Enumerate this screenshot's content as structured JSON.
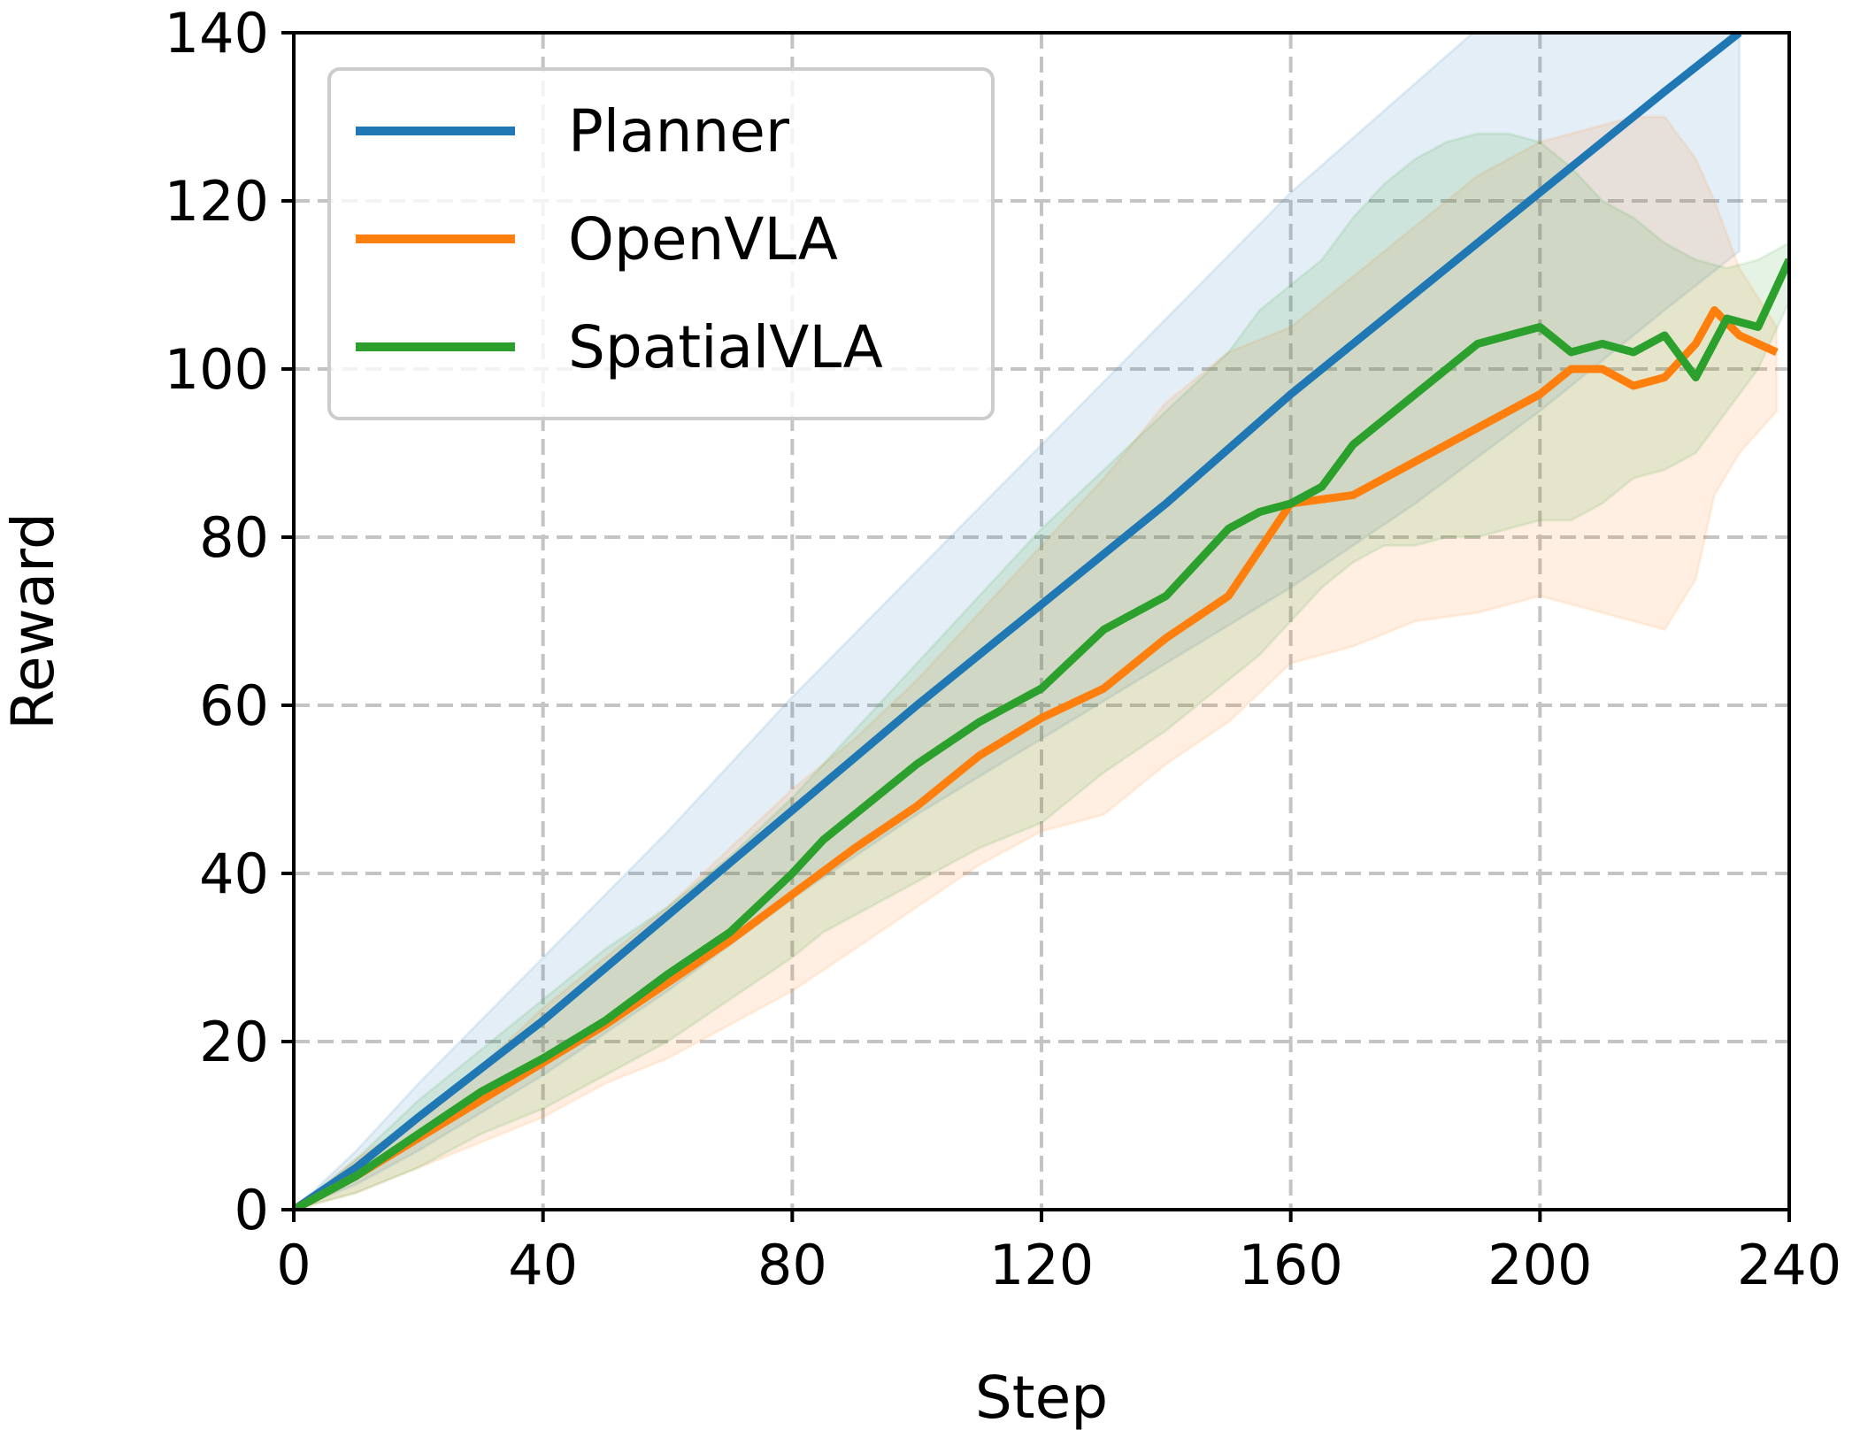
{
  "chart_data": {
    "type": "line",
    "title": "",
    "xlabel": "Step",
    "ylabel": "Reward",
    "xlim": [
      0,
      240
    ],
    "ylim": [
      0,
      140
    ],
    "xticks": [
      0,
      40,
      80,
      120,
      160,
      200,
      240
    ],
    "yticks": [
      0,
      20,
      40,
      60,
      80,
      100,
      120,
      140
    ],
    "grid": true,
    "legend_position": "top-left",
    "series": [
      {
        "name": "Planner",
        "color": "#1f77b4",
        "x": [
          0,
          10,
          20,
          40,
          60,
          80,
          100,
          120,
          140,
          160,
          180,
          200,
          220,
          232
        ],
        "y": [
          0,
          5,
          11,
          22.5,
          35,
          47.5,
          60,
          72,
          84,
          97,
          109,
          121,
          133,
          140
        ],
        "band_low": [
          0,
          3,
          7,
          16,
          26,
          37,
          47,
          56,
          65,
          74,
          84,
          95,
          107,
          114
        ],
        "band_high": [
          0,
          7,
          15,
          30,
          45,
          61,
          76,
          91,
          106,
          121,
          134,
          147,
          150,
          150
        ]
      },
      {
        "name": "OpenVLA",
        "color": "#ff7f0e",
        "x": [
          0,
          10,
          20,
          30,
          40,
          50,
          60,
          70,
          80,
          90,
          100,
          110,
          120,
          130,
          140,
          150,
          160,
          170,
          180,
          190,
          200,
          205,
          210,
          215,
          220,
          225,
          228,
          232,
          238
        ],
        "y": [
          0,
          4,
          8.5,
          13,
          17.5,
          22,
          27,
          32,
          37.5,
          43,
          48,
          54,
          58.5,
          62,
          68,
          73,
          84,
          85,
          89,
          93,
          97,
          100,
          100,
          98,
          99,
          103,
          107,
          104,
          102
        ],
        "band_low": [
          0,
          2,
          5,
          8,
          11,
          15,
          18,
          22,
          26,
          31,
          36,
          41,
          45,
          47,
          53,
          58,
          65,
          67,
          70,
          71,
          73,
          72,
          71,
          70,
          69,
          75,
          85,
          90,
          95
        ],
        "band_high": [
          0,
          6,
          11,
          17,
          24,
          30,
          36,
          43,
          50,
          56,
          63,
          71,
          79,
          87,
          96,
          102,
          105,
          111,
          117,
          123,
          127,
          128,
          129,
          130,
          130,
          125,
          120,
          112,
          105
        ]
      },
      {
        "name": "SpatialVLA",
        "color": "#2ca02c",
        "x": [
          0,
          10,
          20,
          30,
          40,
          50,
          60,
          70,
          80,
          85,
          90,
          100,
          110,
          120,
          130,
          140,
          150,
          155,
          160,
          165,
          170,
          175,
          180,
          185,
          190,
          195,
          200,
          205,
          210,
          215,
          220,
          225,
          230,
          235,
          240
        ],
        "y": [
          0,
          4,
          9,
          14,
          18,
          22.5,
          28,
          33,
          40,
          44,
          47,
          53,
          58,
          62,
          69,
          73,
          81,
          83,
          84,
          86,
          91,
          94,
          97,
          100,
          103,
          104,
          105,
          102,
          103,
          102,
          104,
          99,
          106,
          105,
          113
        ],
        "band_low": [
          0,
          2,
          5,
          9,
          12,
          16,
          20,
          25,
          30,
          33,
          35,
          39,
          43,
          46,
          52,
          57,
          63,
          66,
          70,
          74,
          77,
          79,
          79,
          80,
          80,
          81,
          82,
          82,
          84,
          87,
          88,
          90,
          95,
          100,
          108
        ],
        "band_high": [
          0,
          6,
          13,
          19,
          25,
          31,
          36,
          42,
          49,
          53,
          57,
          65,
          73,
          81,
          88,
          95,
          102,
          107,
          110,
          113,
          118,
          122,
          125,
          127,
          128,
          128,
          127,
          124,
          120,
          118,
          115,
          113,
          112,
          113,
          115
        ]
      }
    ]
  }
}
